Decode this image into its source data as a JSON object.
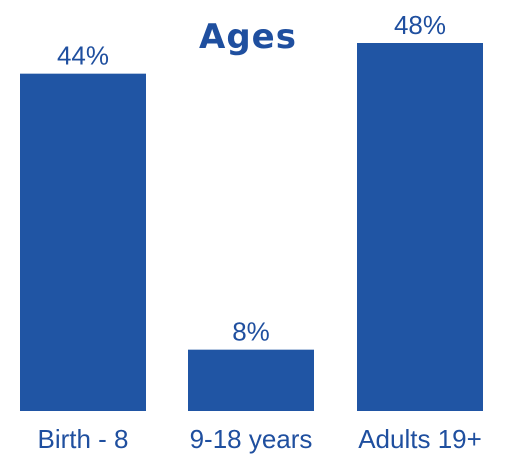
{
  "chart_data": {
    "type": "bar",
    "title": "Ages",
    "categories": [
      "Birth - 8",
      "9-18 years",
      "Adults 19+"
    ],
    "values": [
      44,
      8,
      48
    ],
    "value_labels": [
      "44%",
      "8%",
      "48%"
    ],
    "unit": "%",
    "ylim": [
      0,
      48
    ],
    "grid": false,
    "legend": "none",
    "bar_color": "#2055A4",
    "text_color": "#1f4f9f"
  }
}
